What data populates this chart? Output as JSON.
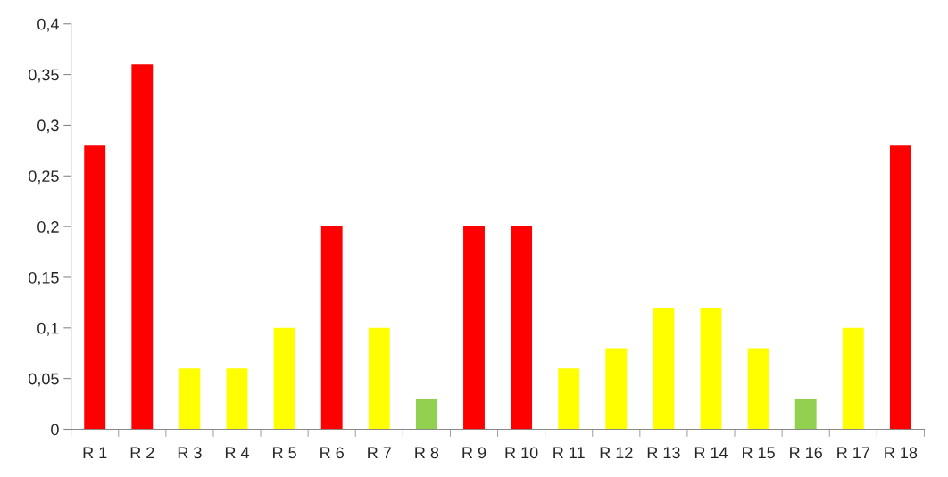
{
  "chart_data": {
    "type": "bar",
    "categories": [
      "R 1",
      "R 2",
      "R 3",
      "R 4",
      "R 5",
      "R 6",
      "R 7",
      "R 8",
      "R 9",
      "R 10",
      "R 11",
      "R 12",
      "R 13",
      "R 14",
      "R 15",
      "R 16",
      "R 17",
      "R 18"
    ],
    "values": [
      0.28,
      0.36,
      0.06,
      0.06,
      0.1,
      0.2,
      0.1,
      0.03,
      0.2,
      0.2,
      0.06,
      0.08,
      0.12,
      0.12,
      0.08,
      0.03,
      0.1,
      0.28
    ],
    "colors": [
      "#ff0000",
      "#ff0000",
      "#ffff00",
      "#ffff00",
      "#ffff00",
      "#ff0000",
      "#ffff00",
      "#92d050",
      "#ff0000",
      "#ff0000",
      "#ffff00",
      "#ffff00",
      "#ffff00",
      "#ffff00",
      "#ffff00",
      "#92d050",
      "#ffff00",
      "#ff0000"
    ],
    "ylim": [
      0,
      0.4
    ],
    "yticks": [
      0,
      {
        "value": 0.05,
        "label": "0,05"
      },
      {
        "value": 0.1,
        "label": "0,1"
      },
      {
        "value": 0.15,
        "label": "0,15"
      },
      {
        "value": 0.2,
        "label": "0,2"
      },
      {
        "value": 0.25,
        "label": "0,25"
      },
      {
        "value": 0.3,
        "label": "0,3"
      },
      {
        "value": 0.35,
        "label": "0,35"
      },
      {
        "value": 0.4,
        "label": "0,4"
      }
    ],
    "grid": false,
    "legend": false
  }
}
